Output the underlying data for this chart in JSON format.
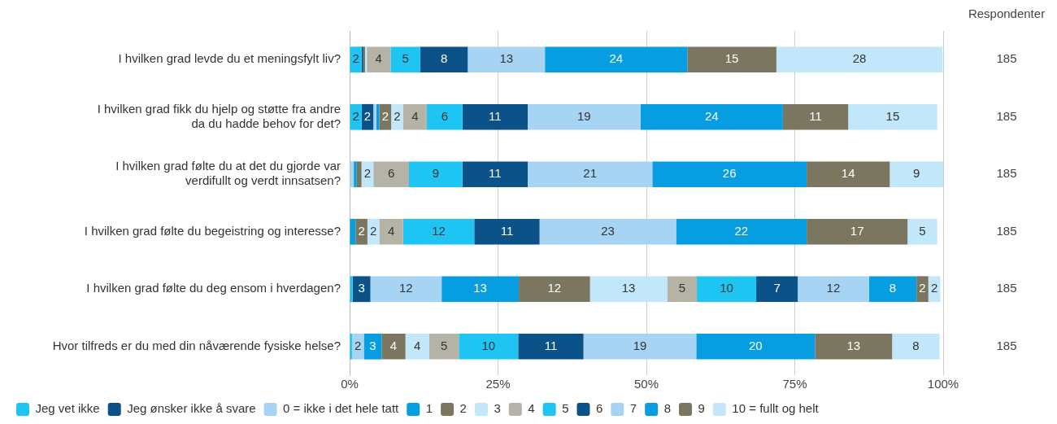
{
  "chart_data": {
    "type": "bar",
    "orientation": "horizontal",
    "stacked": true,
    "categories": [
      "I hvilken grad levde du et meningsfylt liv?",
      "I hvilken grad fikk du hjelp og støtte fra andre da du hadde behov for det?",
      "I hvilken grad følte du at det du gjorde var verdifullt og verdt innsatsen?",
      "I hvilken grad følte du begeistring og interesse?",
      "I hvilken grad følte du deg ensom i hverdagen?",
      "Hvor tilfreds er du med din nåværende fysiske helse?"
    ],
    "series": [
      {
        "name": "Jeg vet ikke",
        "color": "#1ec5f3",
        "values": [
          2,
          2,
          0,
          0,
          0.5,
          0.4
        ],
        "value_labels": [
          "2",
          "2",
          null,
          null,
          null,
          null
        ]
      },
      {
        "name": "Jeg ønsker ikke å svare",
        "color": "#0b5288",
        "values": [
          0.3,
          2,
          0,
          0,
          3,
          0
        ],
        "value_labels": [
          null,
          "2",
          null,
          null,
          "3",
          null
        ]
      },
      {
        "name": "0 = ikke i det hele tatt",
        "color": "#a8d4f4",
        "values": [
          0,
          0.5,
          0.7,
          0,
          12,
          2
        ],
        "value_labels": [
          null,
          null,
          null,
          null,
          "12",
          "2"
        ]
      },
      {
        "name": "1",
        "color": "#069ee0",
        "values": [
          0,
          0.5,
          0.5,
          1,
          13,
          3
        ],
        "value_labels": [
          null,
          null,
          null,
          null,
          "13",
          "3"
        ]
      },
      {
        "name": "2",
        "color": "#7a7660",
        "values": [
          0.3,
          2,
          0.8,
          2,
          12,
          4
        ],
        "value_labels": [
          null,
          "2",
          null,
          "2",
          "12",
          "4"
        ]
      },
      {
        "name": "3",
        "color": "#c2e6fa",
        "values": [
          0.3,
          2,
          2,
          2,
          13,
          4
        ],
        "value_labels": [
          null,
          "2",
          "2",
          "2",
          "13",
          "4"
        ]
      },
      {
        "name": "4",
        "color": "#b4b3a5",
        "values": [
          4,
          4,
          6,
          4,
          5,
          5
        ],
        "value_labels": [
          "4",
          "4",
          "6",
          "4",
          "5",
          "5"
        ]
      },
      {
        "name": "5",
        "color": "#1ec5f3",
        "values": [
          5,
          6,
          9,
          12,
          10,
          10
        ],
        "value_labels": [
          "5",
          "6",
          "9",
          "12",
          "10",
          "10"
        ]
      },
      {
        "name": "6",
        "color": "#0b5288",
        "values": [
          8,
          11,
          11,
          11,
          7,
          11
        ],
        "value_labels": [
          "8",
          "11",
          "11",
          "11",
          "7",
          "11"
        ]
      },
      {
        "name": "7",
        "color": "#a8d4f4",
        "values": [
          13,
          19,
          21,
          23,
          12,
          19
        ],
        "value_labels": [
          "13",
          "19",
          "21",
          "23",
          "12",
          "19"
        ]
      },
      {
        "name": "8",
        "color": "#069ee0",
        "values": [
          24,
          24,
          26,
          22,
          8,
          20
        ],
        "value_labels": [
          "24",
          "24",
          "26",
          "22",
          "8",
          "20"
        ]
      },
      {
        "name": "9",
        "color": "#7a7660",
        "values": [
          15,
          11,
          14,
          17,
          2,
          13
        ],
        "value_labels": [
          "15",
          "11",
          "14",
          "17",
          "2",
          "13"
        ]
      },
      {
        "name": "10 = fullt og helt",
        "color": "#c2e6fa",
        "values": [
          28,
          15,
          9,
          5,
          2,
          8
        ],
        "value_labels": [
          "28",
          "15",
          "9",
          "5",
          "2",
          "8"
        ]
      }
    ],
    "xlim": [
      0,
      100
    ],
    "xticks": [
      {
        "value": 0,
        "label": "0%"
      },
      {
        "value": 25,
        "label": "25%"
      },
      {
        "value": 50,
        "label": "50%"
      },
      {
        "value": 75,
        "label": "75%"
      },
      {
        "value": 100,
        "label": "100%"
      }
    ],
    "grid": "x",
    "legend": "bottom",
    "annotations": [
      "Respondenter",
      "185",
      "185",
      "185",
      "185",
      "185",
      "185"
    ]
  }
}
